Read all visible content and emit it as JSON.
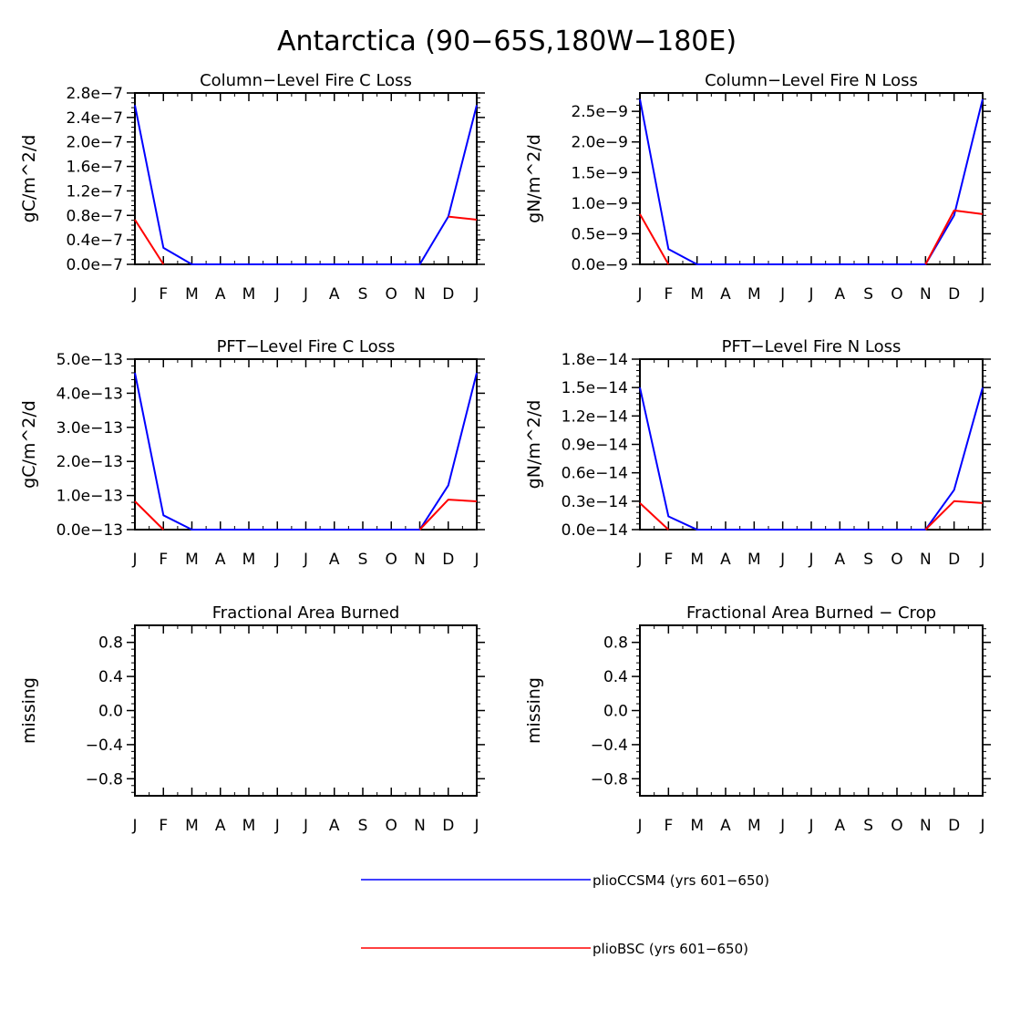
{
  "figure": {
    "title": "Antarctica (90−65S,180W−180E)"
  },
  "months": [
    "J",
    "F",
    "M",
    "A",
    "M",
    "J",
    "J",
    "A",
    "S",
    "O",
    "N",
    "D",
    "J"
  ],
  "chart_data": [
    {
      "type": "line",
      "title": "Column−Level Fire C Loss",
      "ylabel": "gC/m^2/d",
      "xlabel": "",
      "ylim": [
        0,
        2.8e-07
      ],
      "yticks": [
        0,
        4e-08,
        8e-08,
        1.2e-07,
        1.6e-07,
        2e-07,
        2.4e-07,
        2.8e-07
      ],
      "ytick_labels": [
        "0.0e−7",
        "0.4e−7",
        "0.8e−7",
        "1.2e−7",
        "1.6e−7",
        "2.0e−7",
        "2.4e−7",
        "2.8e−7"
      ],
      "series": [
        {
          "name": "plioCCSM4 (yrs 601−650)",
          "color": "#0000ff",
          "values": [
            2.6e-07,
            2.7e-08,
            0,
            0,
            0,
            0,
            0,
            0,
            0,
            0,
            0,
            7.8e-08,
            2.6e-07
          ]
        },
        {
          "name": "plioBSC (yrs 601−650)",
          "color": "#ff0000",
          "values": [
            7.3e-08,
            0,
            null,
            null,
            null,
            null,
            null,
            null,
            null,
            null,
            null,
            7.8e-08,
            7.3e-08
          ]
        }
      ]
    },
    {
      "type": "line",
      "title": "Column−Level Fire N Loss",
      "ylabel": "gN/m^2/d",
      "xlabel": "",
      "ylim": [
        0,
        2.8e-09
      ],
      "yticks": [
        0,
        5e-10,
        1e-09,
        1.5e-09,
        2e-09,
        2.5e-09
      ],
      "ytick_labels": [
        "0.0e−9",
        "0.5e−9",
        "1.0e−9",
        "1.5e−9",
        "2.0e−9",
        "2.5e−9"
      ],
      "series": [
        {
          "name": "plioCCSM4 (yrs 601−650)",
          "color": "#0000ff",
          "values": [
            2.7e-09,
            2.5e-10,
            0,
            0,
            0,
            0,
            0,
            0,
            0,
            0,
            0,
            8e-10,
            2.7e-09
          ]
        },
        {
          "name": "plioBSC (yrs 601−650)",
          "color": "#ff0000",
          "values": [
            8.2e-10,
            0,
            null,
            null,
            null,
            null,
            null,
            null,
            null,
            null,
            0,
            8.8e-10,
            8.2e-10
          ]
        }
      ]
    },
    {
      "type": "line",
      "title": "PFT−Level Fire C Loss",
      "ylabel": "gC/m^2/d",
      "xlabel": "",
      "ylim": [
        0,
        5e-13
      ],
      "yticks": [
        0,
        1e-13,
        2e-13,
        3e-13,
        4e-13,
        5e-13
      ],
      "ytick_labels": [
        "0.0e−13",
        "1.0e−13",
        "2.0e−13",
        "3.0e−13",
        "4.0e−13",
        "5.0e−13"
      ],
      "series": [
        {
          "name": "plioCCSM4 (yrs 601−650)",
          "color": "#0000ff",
          "values": [
            4.6e-13,
            4.2e-14,
            0,
            0,
            0,
            0,
            0,
            0,
            0,
            0,
            0,
            1.3e-13,
            4.6e-13
          ]
        },
        {
          "name": "plioBSC (yrs 601−650)",
          "color": "#ff0000",
          "values": [
            8.3e-14,
            0,
            null,
            null,
            null,
            null,
            null,
            null,
            null,
            null,
            0,
            8.8e-14,
            8.3e-14
          ]
        }
      ]
    },
    {
      "type": "line",
      "title": "PFT−Level Fire N Loss",
      "ylabel": "gN/m^2/d",
      "xlabel": "",
      "ylim": [
        0,
        1.8e-14
      ],
      "yticks": [
        0,
        3e-15,
        6e-15,
        9e-15,
        1.2e-14,
        1.5e-14,
        1.8e-14
      ],
      "ytick_labels": [
        "0.0e−14",
        "0.3e−14",
        "0.6e−14",
        "0.9e−14",
        "1.2e−14",
        "1.5e−14",
        "1.8e−14"
      ],
      "series": [
        {
          "name": "plioCCSM4 (yrs 601−650)",
          "color": "#0000ff",
          "values": [
            1.5e-14,
            1.4e-15,
            0,
            0,
            0,
            0,
            0,
            0,
            0,
            0,
            0,
            4.2e-15,
            1.5e-14
          ]
        },
        {
          "name": "plioBSC (yrs 601−650)",
          "color": "#ff0000",
          "values": [
            2.8e-15,
            0,
            null,
            null,
            null,
            null,
            null,
            null,
            null,
            null,
            0,
            3e-15,
            2.8e-15
          ]
        }
      ]
    },
    {
      "type": "line",
      "title": "Fractional Area Burned",
      "ylabel": "missing",
      "xlabel": "",
      "ylim": [
        -1.0,
        1.0
      ],
      "yticks": [
        -0.8,
        -0.4,
        0.0,
        0.4,
        0.8
      ],
      "ytick_labels": [
        "−0.8",
        "−0.4",
        "0.0",
        "0.4",
        "0.8"
      ],
      "series": []
    },
    {
      "type": "line",
      "title": "Fractional Area Burned − Crop",
      "ylabel": "missing",
      "xlabel": "",
      "ylim": [
        -1.0,
        1.0
      ],
      "yticks": [
        -0.8,
        -0.4,
        0.0,
        0.4,
        0.8
      ],
      "ytick_labels": [
        "−0.8",
        "−0.4",
        "0.0",
        "0.4",
        "0.8"
      ],
      "series": []
    }
  ],
  "legend": {
    "entries": [
      {
        "label": "plioCCSM4 (yrs 601−650)",
        "color": "#0000ff"
      },
      {
        "label": "plioBSC (yrs 601−650)",
        "color": "#ff0000"
      }
    ]
  }
}
